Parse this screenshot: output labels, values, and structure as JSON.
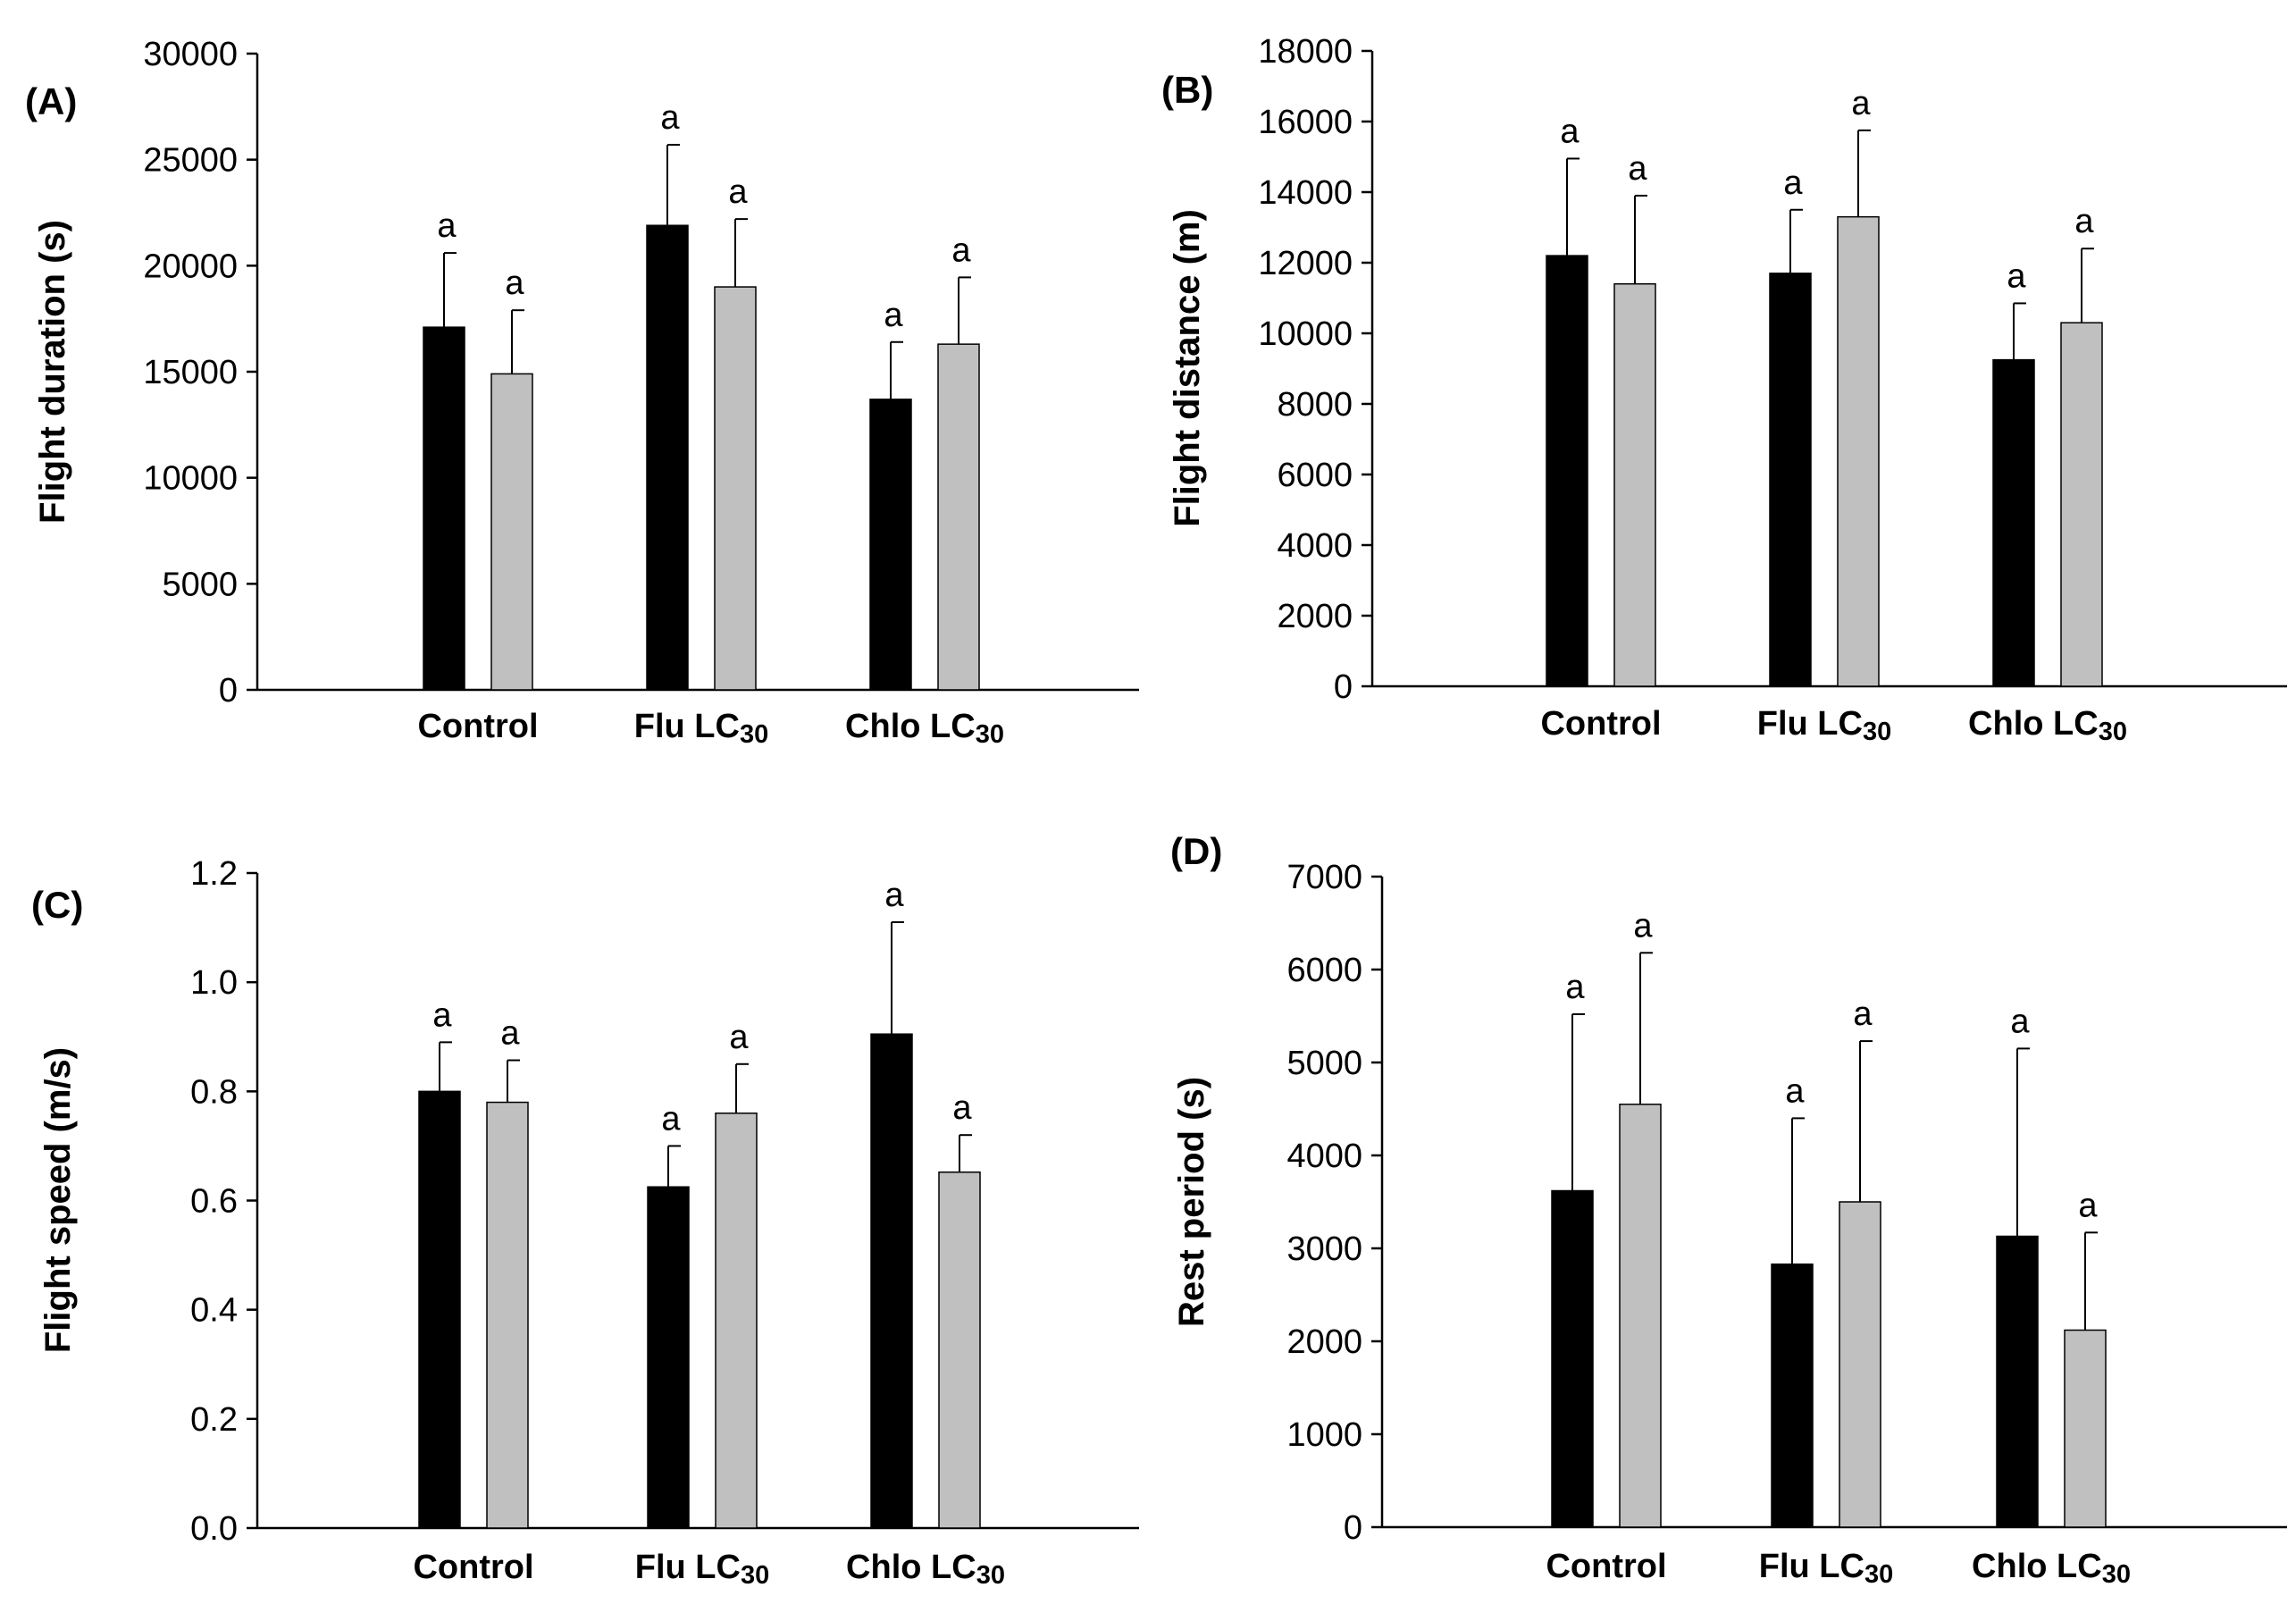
{
  "chart_data": [
    {
      "type": "bar",
      "panel": "(A)",
      "ylabel": "Flight  duration (s)",
      "ylim": [
        0,
        30000
      ],
      "yticks": [
        "0",
        "5000",
        "10000",
        "15000",
        "20000",
        "25000",
        "30000"
      ],
      "categories": [
        {
          "main": "Control",
          "sub": ""
        },
        {
          "main": "Flu LC",
          "sub": "30"
        },
        {
          "main": "Chlo LC",
          "sub": "30"
        }
      ],
      "series": [
        {
          "name": "black",
          "color": "#000000",
          "values": [
            17100,
            21900,
            13700
          ],
          "errors": [
            3500,
            3800,
            2700
          ],
          "sig": [
            "a",
            "a",
            "a"
          ]
        },
        {
          "name": "gray",
          "color": "#c0c0c0",
          "values": [
            14900,
            19000,
            16300
          ],
          "errors": [
            3000,
            3200,
            3150
          ],
          "sig": [
            "a",
            "a",
            "a"
          ]
        }
      ]
    },
    {
      "type": "bar",
      "panel": "(B)",
      "ylabel": "Flight  distance (m)",
      "ylim": [
        0,
        18000
      ],
      "yticks": [
        "0",
        "2000",
        "4000",
        "6000",
        "8000",
        "10000",
        "12000",
        "14000",
        "16000",
        "18000"
      ],
      "categories": [
        {
          "main": "Control",
          "sub": ""
        },
        {
          "main": "Flu LC",
          "sub": "30"
        },
        {
          "main": "Chlo LC",
          "sub": "30"
        }
      ],
      "series": [
        {
          "name": "black",
          "color": "#000000",
          "values": [
            12200,
            11700,
            9250
          ],
          "errors": [
            2750,
            1800,
            1600
          ],
          "sig": [
            "a",
            "a",
            "a"
          ]
        },
        {
          "name": "gray",
          "color": "#c0c0c0",
          "values": [
            11400,
            13300,
            10300
          ],
          "errors": [
            2500,
            2450,
            2100
          ],
          "sig": [
            "a",
            "a",
            "a"
          ]
        }
      ]
    },
    {
      "type": "bar",
      "panel": "(C)",
      "ylabel": "Flight  speed (m/s)",
      "ylim": [
        0,
        1.2
      ],
      "yticks": [
        "0.0",
        "0.2",
        "0.4",
        "0.6",
        "0.8",
        "1.0",
        "1.2"
      ],
      "categories": [
        {
          "main": "Control",
          "sub": ""
        },
        {
          "main": "Flu LC",
          "sub": "30"
        },
        {
          "main": "Chlo LC",
          "sub": "30"
        }
      ],
      "series": [
        {
          "name": "black",
          "color": "#000000",
          "values": [
            0.8,
            0.625,
            0.905
          ],
          "errors": [
            0.09,
            0.075,
            0.205
          ],
          "sig": [
            "a",
            "a",
            "a"
          ]
        },
        {
          "name": "gray",
          "color": "#c0c0c0",
          "values": [
            0.78,
            0.76,
            0.652
          ],
          "errors": [
            0.077,
            0.09,
            0.068
          ],
          "sig": [
            "a",
            "a",
            "a"
          ]
        }
      ]
    },
    {
      "type": "bar",
      "panel": "(D)",
      "ylabel": "Rest period (s)",
      "ylim": [
        0,
        7000
      ],
      "yticks": [
        "0",
        "1000",
        "2000",
        "3000",
        "4000",
        "5000",
        "6000",
        "7000"
      ],
      "categories": [
        {
          "main": "Control",
          "sub": ""
        },
        {
          "main": "Flu LC",
          "sub": "30"
        },
        {
          "main": "Chlo LC",
          "sub": "30"
        }
      ],
      "series": [
        {
          "name": "black",
          "color": "#000000",
          "values": [
            3620,
            2830,
            3130
          ],
          "errors": [
            1900,
            1570,
            2020
          ],
          "sig": [
            "a",
            "a",
            "a"
          ]
        },
        {
          "name": "gray",
          "color": "#c0c0c0",
          "values": [
            4550,
            3500,
            2120
          ],
          "errors": [
            1630,
            1730,
            1050
          ],
          "sig": [
            "a",
            "a",
            "a"
          ]
        }
      ]
    }
  ]
}
